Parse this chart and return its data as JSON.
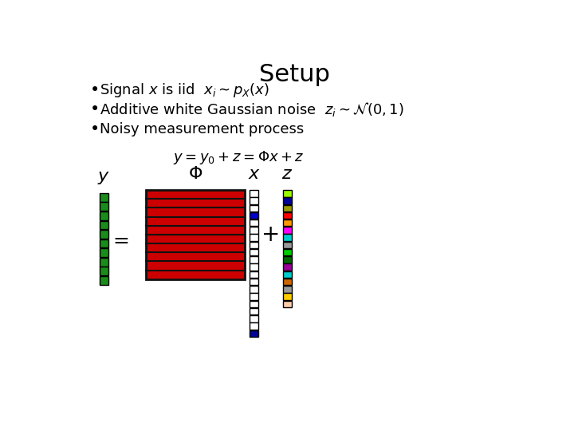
{
  "title": "Setup",
  "title_fontsize": 22,
  "bullet_texts": [
    "Signal $x$ is iid  $x_i \\sim p_X(x)$",
    "Additive white Gaussian noise  $z_i \\sim \\mathcal{N}(0, 1)$",
    "Noisy measurement process"
  ],
  "equation": "$y = y_0 + z = \\Phi x + z$",
  "bullet_fontsize": 13,
  "eq_fontsize": 13,
  "y_color": "#1a8c1a",
  "phi_color_red": "#cc0000",
  "phi_line_color": "#111111",
  "x_colors": [
    "white",
    "white",
    "white",
    "#0000cc",
    "white",
    "white",
    "white",
    "white",
    "white",
    "white",
    "white",
    "white",
    "white",
    "white",
    "white",
    "white",
    "white",
    "white",
    "white",
    "#000099"
  ],
  "z_colors": [
    "#99ff00",
    "#000099",
    "#999900",
    "#ff0000",
    "#ff9900",
    "#ff00ff",
    "#00cccc",
    "#999999",
    "#00cc00",
    "#006600",
    "#990099",
    "#00cccc",
    "#cc6600",
    "#999999",
    "#ffcc00",
    "#ffccaa"
  ],
  "bg_color": "#ffffff"
}
